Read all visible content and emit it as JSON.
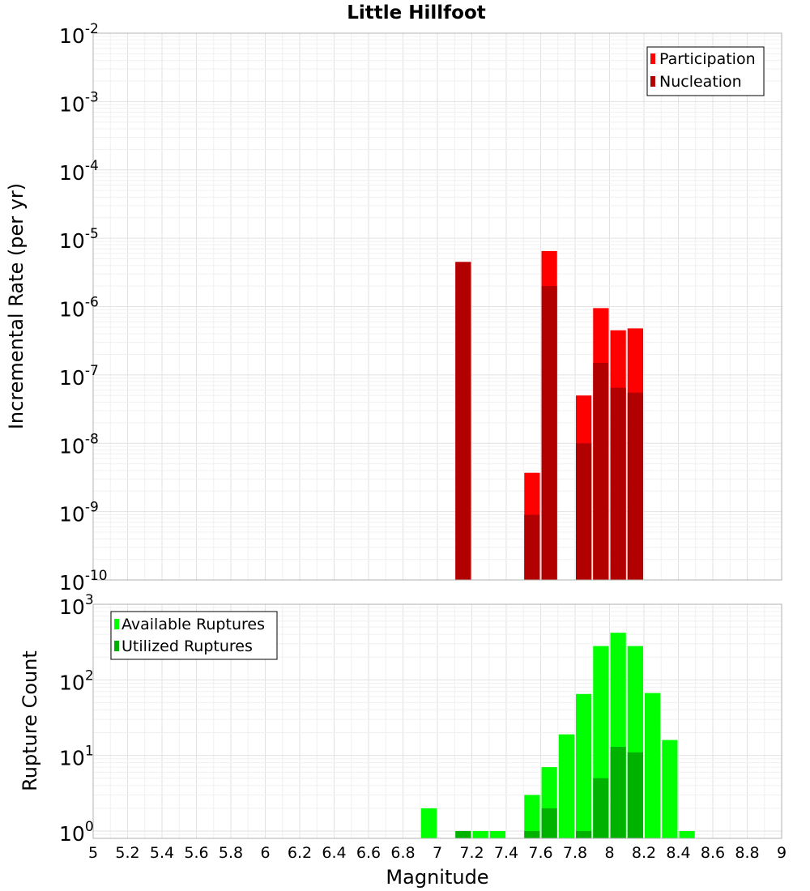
{
  "title": "Little Hillfoot",
  "colors": {
    "participation": "#ff0000",
    "nucleation": "#b20000",
    "available": "#00ff00",
    "utilized": "#00b200",
    "grid": "#e8e8e8",
    "border": "#b0b0b0"
  },
  "chart_data": [
    {
      "type": "bar",
      "panel": "top",
      "yscale": "log",
      "ylabel": "Incremental Rate (per yr)",
      "xlabel": "Magnitude",
      "xlim": [
        5,
        9
      ],
      "ylim": [
        1e-10,
        0.01
      ],
      "ytick_labels": [
        {
          "base": "10",
          "exp": "-10"
        },
        {
          "base": "10",
          "exp": "-9"
        },
        {
          "base": "10",
          "exp": "-8"
        },
        {
          "base": "10",
          "exp": "-7"
        },
        {
          "base": "10",
          "exp": "-6"
        },
        {
          "base": "10",
          "exp": "-5"
        },
        {
          "base": "10",
          "exp": "-4"
        },
        {
          "base": "10",
          "exp": "-3"
        },
        {
          "base": "10",
          "exp": "-2"
        }
      ],
      "legend": {
        "position": "top-right",
        "entries": [
          "Participation",
          "Nucleation"
        ]
      },
      "bin_width": 0.1,
      "series": [
        {
          "name": "Participation",
          "x": [
            7.15,
            7.55,
            7.65,
            7.85,
            7.95,
            8.05,
            8.15
          ],
          "values": [
            4.5e-06,
            3.7e-09,
            6.5e-06,
            5e-08,
            9.5e-07,
            4.5e-07,
            4.8e-07
          ]
        },
        {
          "name": "Nucleation",
          "x": [
            7.15,
            7.55,
            7.65,
            7.85,
            7.95,
            8.05,
            8.15
          ],
          "values": [
            4.5e-06,
            9e-10,
            2e-06,
            1e-08,
            1.5e-07,
            6.5e-08,
            5.5e-08
          ]
        }
      ]
    },
    {
      "type": "bar",
      "panel": "bottom",
      "yscale": "log",
      "ylabel": "Rupture Count",
      "xlabel": "Magnitude",
      "xlim": [
        5,
        9
      ],
      "ylim": [
        0.8,
        1000
      ],
      "ytick_labels": [
        {
          "base": "10",
          "exp": "0"
        },
        {
          "base": "10",
          "exp": "1"
        },
        {
          "base": "10",
          "exp": "2"
        },
        {
          "base": "10",
          "exp": "3"
        }
      ],
      "xtick_labels": [
        "5",
        "5.2",
        "5.4",
        "5.6",
        "5.8",
        "6",
        "6.2",
        "6.4",
        "6.6",
        "6.8",
        "7",
        "7.2",
        "7.4",
        "7.6",
        "7.8",
        "8",
        "8.2",
        "8.4",
        "8.6",
        "8.8",
        "9"
      ],
      "legend": {
        "position": "top-left",
        "entries": [
          "Available Ruptures",
          "Utilized Ruptures"
        ]
      },
      "bin_width": 0.1,
      "series": [
        {
          "name": "Available Ruptures",
          "x": [
            6.95,
            7.15,
            7.25,
            7.35,
            7.55,
            7.65,
            7.75,
            7.85,
            7.95,
            8.05,
            8.15,
            8.25,
            8.35,
            8.45
          ],
          "values": [
            2,
            1,
            1,
            1,
            3,
            7,
            19,
            65,
            280,
            420,
            280,
            67,
            16,
            1
          ]
        },
        {
          "name": "Utilized Ruptures",
          "x": [
            7.15,
            7.55,
            7.65,
            7.85,
            7.95,
            8.05,
            8.15
          ],
          "values": [
            1,
            1,
            2,
            1,
            5,
            13,
            11
          ]
        }
      ]
    }
  ]
}
